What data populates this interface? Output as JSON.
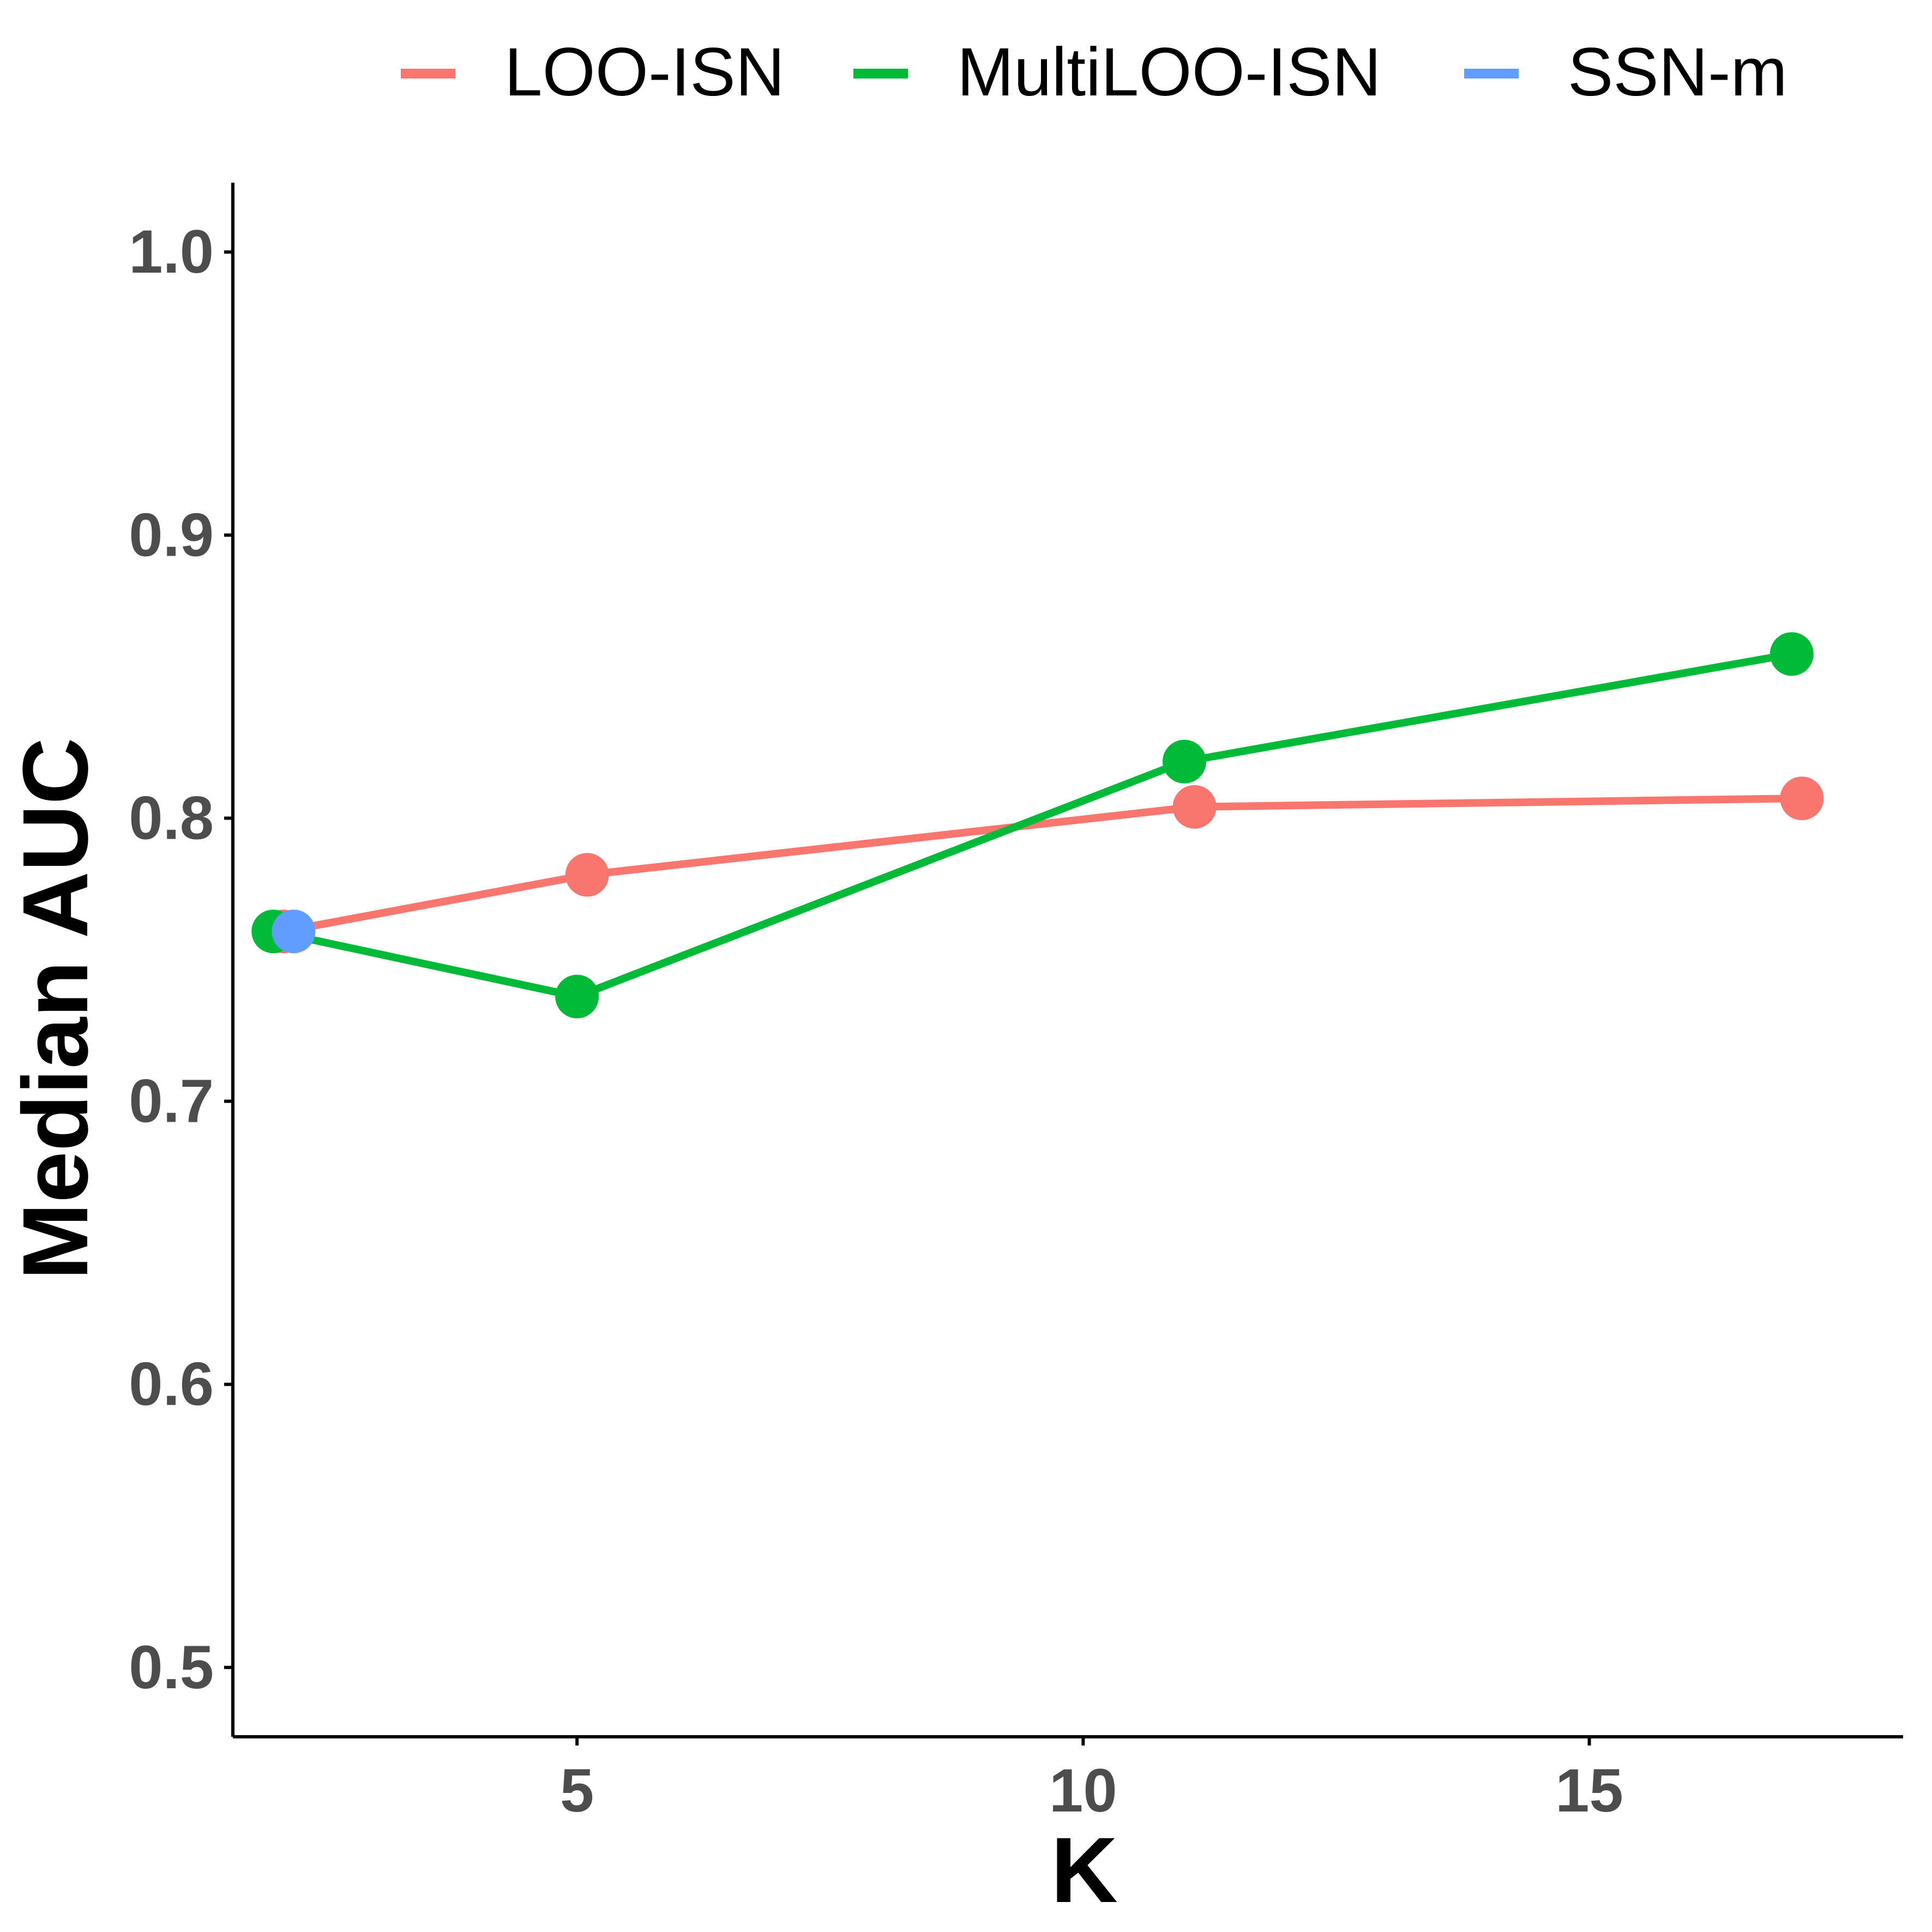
{
  "chart_data": {
    "type": "line",
    "title": "",
    "xlabel": "K",
    "ylabel": "Median AUC",
    "xlim": [
      1.6,
      18.1
    ],
    "ylim": [
      0.4755,
      1.0245
    ],
    "x_ticks": [
      5,
      10,
      15
    ],
    "x_tick_labels": [
      "5",
      "10",
      "15"
    ],
    "y_ticks": [
      0.5,
      0.6,
      0.7,
      0.8,
      0.9,
      1.0
    ],
    "y_tick_labels": [
      "0.5",
      "0.6",
      "0.7",
      "0.8",
      "0.9",
      "1.0"
    ],
    "grid": false,
    "legend": {
      "position": "top",
      "orientation": "horizontal"
    },
    "series": [
      {
        "name": "LOO-ISN",
        "color": "#F8766D",
        "x": [
          2.1,
          5.1,
          11.1,
          17.1
        ],
        "y": [
          0.76,
          0.78,
          0.804,
          0.807
        ]
      },
      {
        "name": "MultiLOO-ISN",
        "color": "#00BA38",
        "x": [
          2.0,
          5.0,
          11.0,
          17.0
        ],
        "y": [
          0.76,
          0.737,
          0.82,
          0.858
        ]
      },
      {
        "name": "SSN-m",
        "color": "#619CFF",
        "x": [
          2.2
        ],
        "y": [
          0.76
        ]
      }
    ]
  }
}
